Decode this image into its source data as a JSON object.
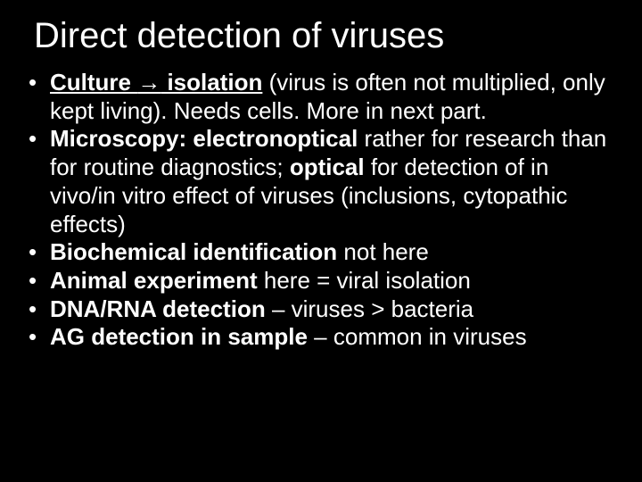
{
  "slide": {
    "background_color": "#000000",
    "text_color": "#ffffff",
    "title": "Direct detection of viruses",
    "title_fontsize": 40,
    "body_fontsize": 26,
    "bullets": [
      {
        "bold1": "Culture ",
        "arrow": "→",
        "bold2": " isolation",
        "rest": " (virus is often not multiplied, only kept living). Needs cells. More in next part."
      },
      {
        "bold1": "Microscopy: ",
        "bold2": "electronoptical",
        "mid": " rather for research than for routine diagnostics; ",
        "bold3": "optical",
        "rest": " for detection of in vivo/in vitro effect of viruses (inclusions, cytopathic effects)"
      },
      {
        "bold1": "Biochemical identification",
        "rest": " not here"
      },
      {
        "bold1": "Animal experiment",
        "rest": " here = viral isolation"
      },
      {
        "bold1": "DNA/RNA detection",
        "rest": " – viruses > bacteria"
      },
      {
        "bold1": "AG detection in sample",
        "rest": " – common in viruses"
      }
    ]
  }
}
